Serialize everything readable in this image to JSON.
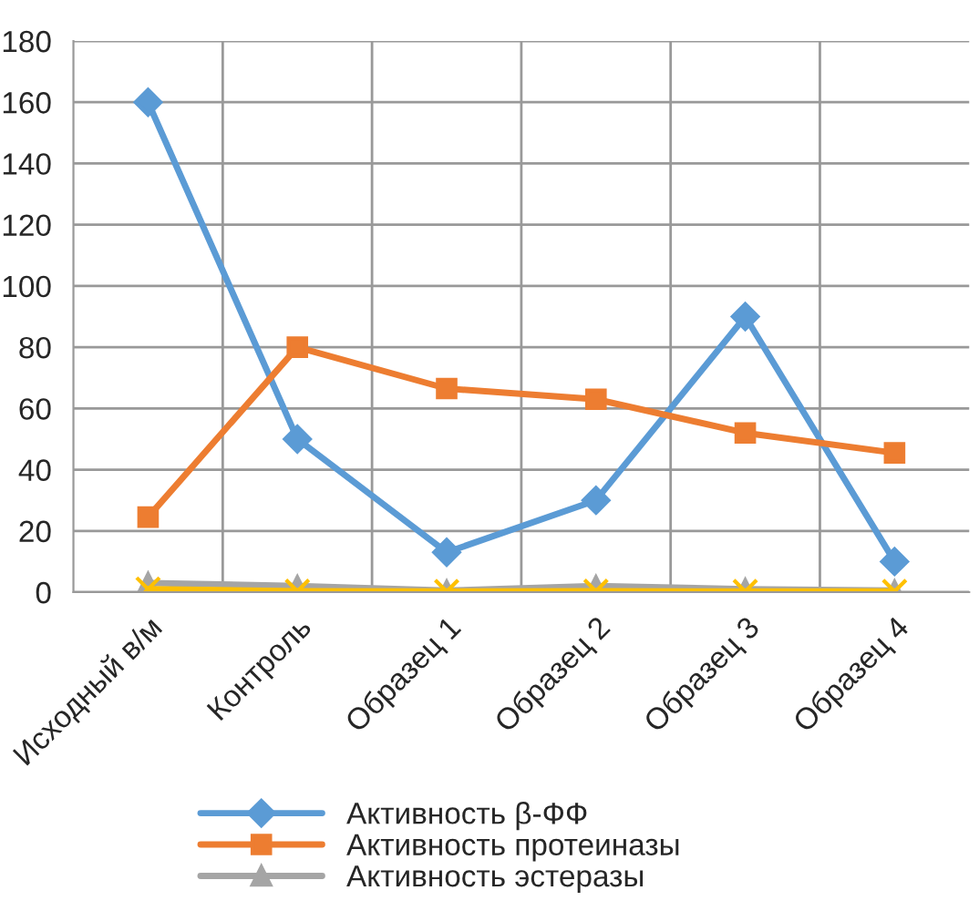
{
  "chart_data": {
    "type": "line",
    "categories": [
      "Исходный в/м",
      "Контроль",
      "Образец 1",
      "Образец 2",
      "Образец 3",
      "Образец 4"
    ],
    "series": [
      {
        "name": "Активность β-ФФ",
        "color": "#5b9bd5",
        "marker": "diamond",
        "values": [
          160,
          50,
          13,
          30,
          90,
          10
        ]
      },
      {
        "name": "Активность протеиназы",
        "color": "#ed7d31",
        "marker": "square",
        "values": [
          24.5,
          80,
          66.5,
          63,
          52,
          45.5
        ]
      },
      {
        "name": "Активность эстеразы",
        "color": "#a5a5a5",
        "marker": "triangle",
        "values": [
          3,
          2,
          0.5,
          2,
          1,
          0.5
        ]
      },
      {
        "color": "#ffc000",
        "marker": "cross",
        "values": [
          1,
          0.3,
          0.2,
          0.3,
          0.2,
          0.2
        ]
      }
    ],
    "ylim": [
      0,
      180
    ],
    "yticks": [
      0,
      20,
      40,
      60,
      80,
      100,
      120,
      140,
      160,
      180
    ],
    "grid": true,
    "legend": "bottom"
  }
}
